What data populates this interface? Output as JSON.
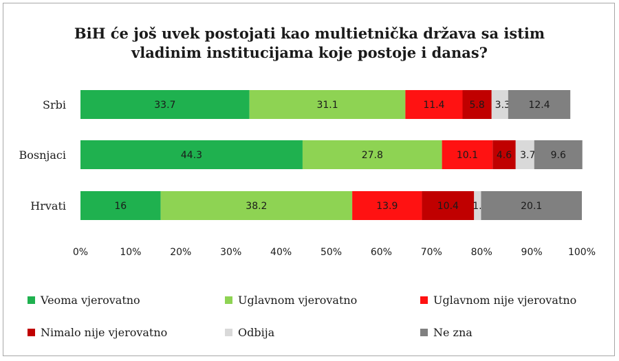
{
  "chart_data": {
    "type": "bar",
    "orientation": "horizontal",
    "stacked": true,
    "title": [
      "BiH će još uvek postojati kao multietnička država sa istim",
      "vladinim institucijama koje postoje i danas?"
    ],
    "categories": [
      "Srbi",
      "Bosnjaci",
      "Hrvati"
    ],
    "series": [
      {
        "name": "Veoma vjerovatno",
        "color": "#1fb14f",
        "values": [
          33.7,
          44.3,
          16
        ]
      },
      {
        "name": "Uglavnom vjerovatno",
        "color": "#8ed353",
        "values": [
          31.1,
          27.8,
          38.2
        ]
      },
      {
        "name": "Uglavnom nije vjerovatno",
        "color": "#ff1212",
        "values": [
          11.4,
          10.1,
          13.9
        ]
      },
      {
        "name": "Nimalo nije vjerovatno",
        "color": "#c00000",
        "values": [
          5.8,
          4.6,
          10.4
        ]
      },
      {
        "name": "Odbija",
        "color": "#d9d9d9",
        "values": [
          3.3,
          3.7,
          1.4
        ]
      },
      {
        "name": "Ne zna",
        "color": "#808080",
        "values": [
          12.4,
          9.6,
          20.1
        ]
      }
    ],
    "x_ticks": [
      "0%",
      "10%",
      "20%",
      "30%",
      "40%",
      "50%",
      "60%",
      "70%",
      "80%",
      "90%",
      "100%"
    ],
    "xlim": [
      0,
      100
    ],
    "grid": false,
    "legend_position": "bottom"
  }
}
